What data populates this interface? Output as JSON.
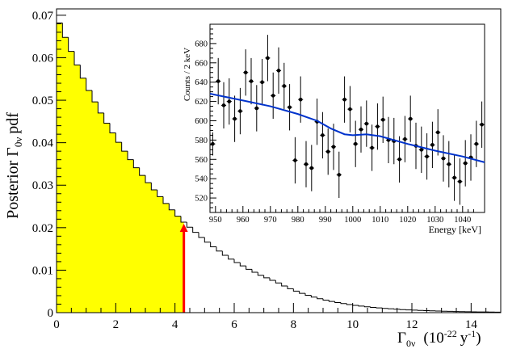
{
  "chart_data": [
    {
      "type": "histogram",
      "ylabel_main": "Posterior Γ",
      "ylabel_sub": "0ν",
      "ylabel_tail": "pdf",
      "xlabel_main": "Γ",
      "xlabel_sub": "0ν",
      "xlabel_unit_open": "(10",
      "xlabel_unit_exp1": "-22",
      "xlabel_unit_mid": "y",
      "xlabel_unit_exp2": "-1",
      "xlabel_unit_close": ")",
      "xlim": [
        0,
        15
      ],
      "ylim": [
        0,
        0.0715
      ],
      "xticks": [
        0,
        2,
        4,
        6,
        8,
        10,
        12,
        14
      ],
      "yticks": [
        0,
        0.01,
        0.02,
        0.03,
        0.04,
        0.05,
        0.06,
        0.07
      ],
      "ytick_labels": [
        "0",
        "0.01",
        "0.02",
        "0.03",
        "0.04",
        "0.05",
        "0.06",
        "0.07"
      ],
      "bin_width": 0.2,
      "pdf_decay_scale": 1.85,
      "bins": [
        0.0682,
        0.0648,
        0.0615,
        0.0583,
        0.0552,
        0.0523,
        0.0496,
        0.047,
        0.0446,
        0.0423,
        0.0401,
        0.038,
        0.036,
        0.0341,
        0.0323,
        0.0306,
        0.0289,
        0.0273,
        0.0257,
        0.0242,
        0.0227,
        0.0213,
        0.0201,
        0.0189,
        0.0177,
        0.0166,
        0.0155,
        0.0145,
        0.0135,
        0.0126,
        0.0118,
        0.011,
        0.0102,
        0.0095,
        0.0088,
        0.0082,
        0.0076,
        0.007
      ],
      "shaded_limit": 4.3,
      "fill_color": "#ffff00",
      "marker_color": "#ff0000"
    },
    {
      "type": "scatter",
      "ylabel": "Counts / 2 keV",
      "xlabel": "Energy [keV]",
      "xlim": [
        948,
        1048
      ],
      "ylim": [
        505,
        700
      ],
      "xticks": [
        950,
        960,
        970,
        980,
        990,
        1000,
        1010,
        1020,
        1030,
        1040
      ],
      "yticks": [
        520,
        540,
        560,
        580,
        600,
        620,
        640,
        660,
        680
      ],
      "points": [
        [
          949,
          576,
          12
        ],
        [
          951,
          641,
          24
        ],
        [
          953,
          616,
          24
        ],
        [
          955,
          620,
          24
        ],
        [
          957,
          602,
          24
        ],
        [
          959,
          610,
          24
        ],
        [
          961,
          650,
          24
        ],
        [
          963,
          641,
          24
        ],
        [
          965,
          613,
          24
        ],
        [
          967,
          640,
          24
        ],
        [
          969,
          665,
          24
        ],
        [
          971,
          626,
          24
        ],
        [
          973,
          652,
          24
        ],
        [
          975,
          636,
          24
        ],
        [
          977,
          614,
          24
        ],
        [
          979,
          559,
          24
        ],
        [
          981,
          622,
          24
        ],
        [
          983,
          555,
          24
        ],
        [
          985,
          551,
          24
        ],
        [
          987,
          599,
          24
        ],
        [
          989,
          585,
          24
        ],
        [
          991,
          568,
          24
        ],
        [
          993,
          573,
          24
        ],
        [
          995,
          544,
          24
        ],
        [
          997,
          622,
          24
        ],
        [
          999,
          612,
          24
        ],
        [
          1001,
          576,
          24
        ],
        [
          1003,
          591,
          24
        ],
        [
          1005,
          597,
          24
        ],
        [
          1007,
          572,
          24
        ],
        [
          1009,
          594,
          24
        ],
        [
          1011,
          601,
          24
        ],
        [
          1013,
          580,
          24
        ],
        [
          1015,
          579,
          24
        ],
        [
          1017,
          560,
          24
        ],
        [
          1019,
          581,
          24
        ],
        [
          1021,
          602,
          24
        ],
        [
          1023,
          574,
          24
        ],
        [
          1025,
          570,
          24
        ],
        [
          1027,
          563,
          24
        ],
        [
          1029,
          575,
          24
        ],
        [
          1031,
          588,
          24
        ],
        [
          1033,
          561,
          24
        ],
        [
          1035,
          555,
          24
        ],
        [
          1037,
          541,
          24
        ],
        [
          1039,
          537,
          24
        ],
        [
          1041,
          556,
          24
        ],
        [
          1043,
          562,
          24
        ],
        [
          1045,
          576,
          24
        ],
        [
          1047,
          596,
          24
        ]
      ],
      "fit_curve": [
        [
          948,
          628
        ],
        [
          960,
          621
        ],
        [
          970,
          615
        ],
        [
          980,
          607
        ],
        [
          987,
          600
        ],
        [
          992,
          592
        ],
        [
          997,
          586
        ],
        [
          1000,
          585
        ],
        [
          1005,
          586
        ],
        [
          1010,
          584
        ],
        [
          1020,
          576
        ],
        [
          1030,
          569
        ],
        [
          1040,
          563
        ],
        [
          1048,
          557
        ]
      ],
      "fit_color": "#0033cc"
    }
  ]
}
